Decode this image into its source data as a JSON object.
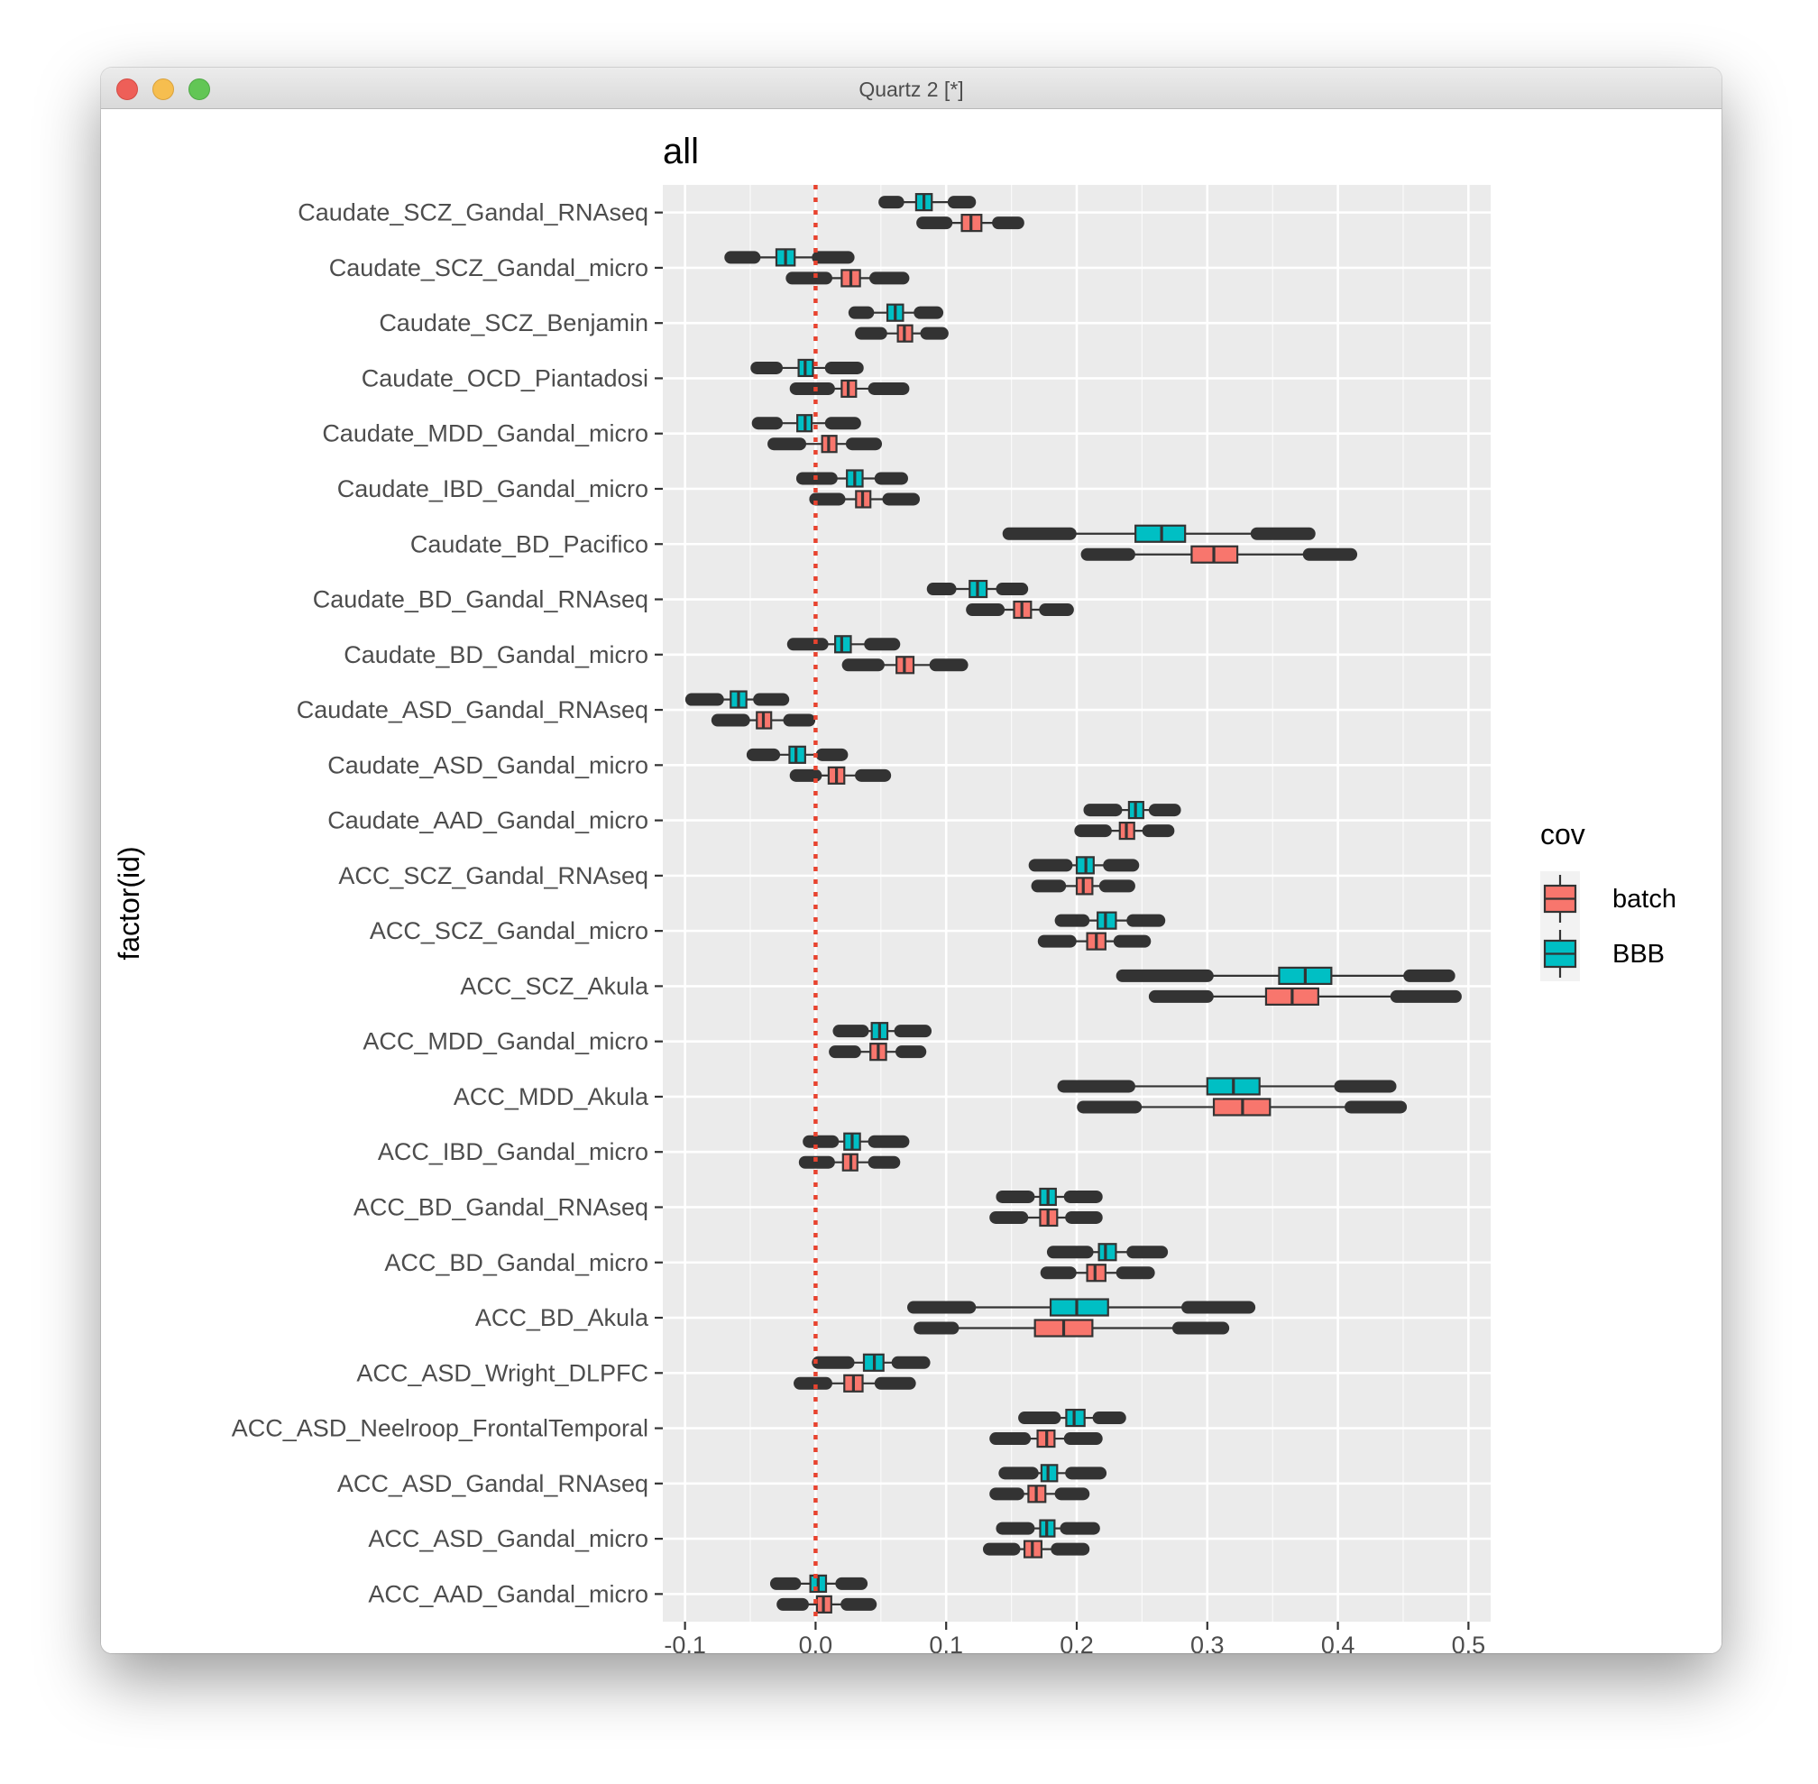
{
  "window": {
    "title": "Quartz 2 [*]",
    "controls": [
      "close",
      "minimize",
      "zoom"
    ]
  },
  "colors": {
    "panel": "#EBEBEB",
    "grid": "#FFFFFF",
    "batch": "#F8766D",
    "BBB": "#00BFC4",
    "reference_line": "#E8432F",
    "outline": "#333333"
  },
  "chart_data": {
    "type": "boxplot",
    "orientation": "horizontal",
    "title": "all",
    "xlabel": "",
    "ylabel": "factor(id)",
    "xlim": [
      -0.117,
      0.517
    ],
    "x_ticks": [
      -0.1,
      0.0,
      0.1,
      0.2,
      0.3,
      0.4,
      0.5
    ],
    "x_tick_labels": [
      "-0.1",
      "0.0",
      "0.1",
      "0.2",
      "0.3",
      "0.4",
      "0.5"
    ],
    "reference_line": {
      "x": 0,
      "style": "dotted",
      "color": "red"
    },
    "grid": true,
    "legend": {
      "title": "cov",
      "position": "right",
      "entries": [
        {
          "name": "batch",
          "color": "#F8766D"
        },
        {
          "name": "BBB",
          "color": "#00BFC4"
        }
      ]
    },
    "stat_fields": [
      "whisker_low",
      "q1",
      "median",
      "q3",
      "whisker_high",
      "out_low",
      "out_high"
    ],
    "categories": [
      "Caudate_SCZ_Gandal_RNAseq",
      "Caudate_SCZ_Gandal_micro",
      "Caudate_SCZ_Benjamin",
      "Caudate_OCD_Piantadosi",
      "Caudate_MDD_Gandal_micro",
      "Caudate_IBD_Gandal_micro",
      "Caudate_BD_Pacifico",
      "Caudate_BD_Gandal_RNAseq",
      "Caudate_BD_Gandal_micro",
      "Caudate_ASD_Gandal_RNAseq",
      "Caudate_ASD_Gandal_micro",
      "Caudate_AAD_Gandal_micro",
      "ACC_SCZ_Gandal_RNAseq",
      "ACC_SCZ_Gandal_micro",
      "ACC_SCZ_Akula",
      "ACC_MDD_Gandal_micro",
      "ACC_MDD_Akula",
      "ACC_IBD_Gandal_micro",
      "ACC_BD_Gandal_RNAseq",
      "ACC_BD_Gandal_micro",
      "ACC_BD_Akula",
      "ACC_ASD_Wright_DLPFC",
      "ACC_ASD_Neelroop_FrontalTemporal",
      "ACC_ASD_Gandal_RNAseq",
      "ACC_ASD_Gandal_micro",
      "ACC_AAD_Gandal_micro"
    ],
    "series": [
      {
        "name": "BBB",
        "values": [
          [
            0.063,
            0.077,
            0.083,
            0.089,
            0.106,
            0.053,
            0.118
          ],
          [
            -0.047,
            -0.03,
            -0.023,
            -0.016,
            0.002,
            -0.065,
            0.025
          ],
          [
            0.04,
            0.055,
            0.061,
            0.067,
            0.08,
            0.03,
            0.093
          ],
          [
            -0.03,
            -0.013,
            -0.008,
            -0.002,
            0.012,
            -0.045,
            0.032
          ],
          [
            -0.03,
            -0.014,
            -0.008,
            -0.003,
            0.012,
            -0.044,
            0.03
          ],
          [
            0.012,
            0.024,
            0.03,
            0.036,
            0.05,
            -0.01,
            0.066
          ],
          [
            0.195,
            0.245,
            0.265,
            0.283,
            0.338,
            0.148,
            0.378
          ],
          [
            0.103,
            0.118,
            0.124,
            0.131,
            0.143,
            0.09,
            0.158
          ],
          [
            0.005,
            0.015,
            0.02,
            0.027,
            0.042,
            -0.017,
            0.06
          ],
          [
            -0.075,
            -0.065,
            -0.059,
            -0.053,
            -0.043,
            -0.095,
            -0.025
          ],
          [
            -0.032,
            -0.02,
            -0.015,
            -0.008,
            0.005,
            -0.048,
            0.02
          ],
          [
            0.23,
            0.24,
            0.245,
            0.251,
            0.26,
            0.21,
            0.275
          ],
          [
            0.192,
            0.2,
            0.207,
            0.213,
            0.225,
            0.168,
            0.243
          ],
          [
            0.205,
            0.216,
            0.222,
            0.23,
            0.243,
            0.188,
            0.263
          ],
          [
            0.3,
            0.355,
            0.375,
            0.395,
            0.455,
            0.235,
            0.485
          ],
          [
            0.036,
            0.043,
            0.049,
            0.055,
            0.065,
            0.018,
            0.084
          ],
          [
            0.24,
            0.3,
            0.32,
            0.34,
            0.402,
            0.19,
            0.44
          ],
          [
            0.013,
            0.022,
            0.028,
            0.034,
            0.045,
            -0.005,
            0.067
          ],
          [
            0.163,
            0.172,
            0.178,
            0.184,
            0.195,
            0.143,
            0.215
          ],
          [
            0.208,
            0.217,
            0.222,
            0.23,
            0.243,
            0.182,
            0.265
          ],
          [
            0.118,
            0.18,
            0.2,
            0.224,
            0.285,
            0.075,
            0.332
          ],
          [
            0.025,
            0.037,
            0.045,
            0.052,
            0.063,
            0.002,
            0.083
          ],
          [
            0.183,
            0.192,
            0.198,
            0.206,
            0.217,
            0.16,
            0.233
          ],
          [
            0.166,
            0.173,
            0.178,
            0.185,
            0.196,
            0.145,
            0.218
          ],
          [
            0.163,
            0.172,
            0.177,
            0.183,
            0.192,
            0.143,
            0.213
          ],
          [
            -0.016,
            -0.004,
            0.002,
            0.008,
            0.02,
            -0.03,
            0.035
          ]
        ]
      },
      {
        "name": "batch",
        "values": [
          [
            0.1,
            0.112,
            0.119,
            0.127,
            0.14,
            0.082,
            0.155
          ],
          [
            0.008,
            0.02,
            0.027,
            0.034,
            0.046,
            -0.018,
            0.067
          ],
          [
            0.05,
            0.063,
            0.068,
            0.074,
            0.085,
            0.035,
            0.097
          ],
          [
            0.01,
            0.02,
            0.025,
            0.031,
            0.045,
            -0.015,
            0.067
          ],
          [
            -0.012,
            0.005,
            0.01,
            0.016,
            0.028,
            -0.032,
            0.046
          ],
          [
            0.018,
            0.031,
            0.036,
            0.042,
            0.056,
            0.0,
            0.075
          ],
          [
            0.24,
            0.288,
            0.305,
            0.323,
            0.378,
            0.208,
            0.41
          ],
          [
            0.14,
            0.152,
            0.158,
            0.165,
            0.176,
            0.12,
            0.193
          ],
          [
            0.048,
            0.062,
            0.068,
            0.075,
            0.092,
            0.025,
            0.112
          ],
          [
            -0.055,
            -0.045,
            -0.04,
            -0.034,
            -0.02,
            -0.075,
            -0.005
          ],
          [
            0.0,
            0.01,
            0.016,
            0.022,
            0.035,
            -0.015,
            0.053
          ],
          [
            0.222,
            0.233,
            0.238,
            0.244,
            0.255,
            0.203,
            0.27
          ],
          [
            0.187,
            0.2,
            0.205,
            0.212,
            0.222,
            0.17,
            0.24
          ],
          [
            0.195,
            0.208,
            0.215,
            0.222,
            0.233,
            0.175,
            0.252
          ],
          [
            0.3,
            0.345,
            0.365,
            0.385,
            0.445,
            0.26,
            0.49
          ],
          [
            0.03,
            0.042,
            0.048,
            0.054,
            0.066,
            0.015,
            0.08
          ],
          [
            0.245,
            0.305,
            0.327,
            0.348,
            0.41,
            0.205,
            0.448
          ],
          [
            0.01,
            0.021,
            0.027,
            0.032,
            0.045,
            -0.008,
            0.06
          ],
          [
            0.158,
            0.172,
            0.178,
            0.185,
            0.196,
            0.138,
            0.215
          ],
          [
            0.195,
            0.208,
            0.214,
            0.222,
            0.235,
            0.177,
            0.255
          ],
          [
            0.105,
            0.168,
            0.19,
            0.212,
            0.278,
            0.08,
            0.312
          ],
          [
            0.008,
            0.022,
            0.029,
            0.036,
            0.05,
            -0.012,
            0.072
          ],
          [
            0.16,
            0.17,
            0.177,
            0.183,
            0.195,
            0.138,
            0.215
          ],
          [
            0.155,
            0.163,
            0.169,
            0.176,
            0.188,
            0.138,
            0.205
          ],
          [
            0.152,
            0.16,
            0.166,
            0.173,
            0.185,
            0.133,
            0.205
          ],
          [
            -0.01,
            0.001,
            0.006,
            0.012,
            0.024,
            -0.025,
            0.042
          ]
        ]
      }
    ]
  }
}
